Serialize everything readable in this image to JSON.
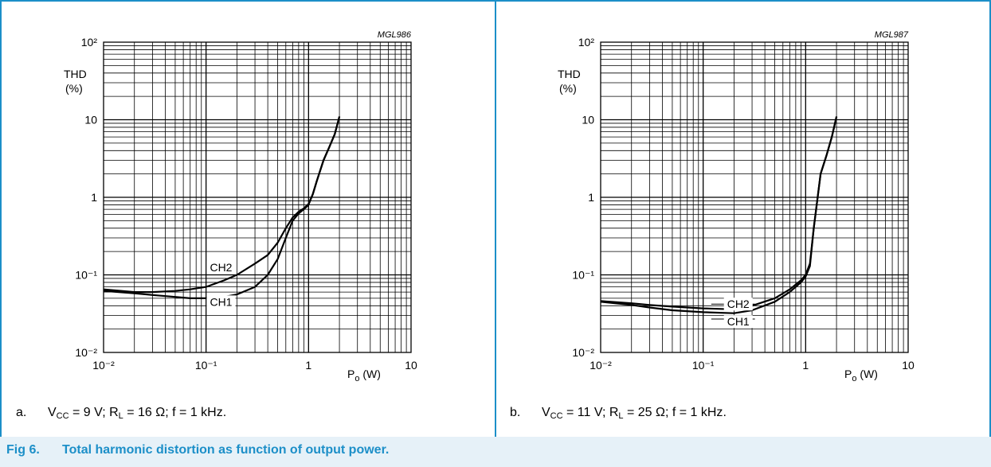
{
  "colors": {
    "frame": "#1c8fc8",
    "caption_bg": "#e6f1f8",
    "caption_text": "#1c8fc8",
    "curve": "#000000"
  },
  "figure_caption": {
    "number": "Fig 6.",
    "text": "Total harmonic distortion as function of output power."
  },
  "chart_data": [
    {
      "type": "line",
      "figure_id": "MGL986",
      "ylabel": "THD (%)",
      "xlabel": "P_o (W)",
      "x_scale": "log",
      "y_scale": "log",
      "xlim": [
        0.01,
        10
      ],
      "ylim": [
        0.01,
        100
      ],
      "x_ticks": [
        0.01,
        0.1,
        1,
        10
      ],
      "y_ticks": [
        0.01,
        0.1,
        1,
        10,
        100
      ],
      "grid": true,
      "series": [
        {
          "name": "CH2",
          "x": [
            0.01,
            0.02,
            0.03,
            0.05,
            0.07,
            0.1,
            0.15,
            0.2,
            0.3,
            0.4,
            0.5,
            0.6,
            0.7,
            0.8,
            0.9,
            1.0,
            1.1,
            1.2,
            1.4,
            1.6,
            1.8,
            2.0
          ],
          "y": [
            0.065,
            0.06,
            0.06,
            0.062,
            0.065,
            0.07,
            0.085,
            0.1,
            0.14,
            0.18,
            0.26,
            0.4,
            0.55,
            0.65,
            0.72,
            0.82,
            1.1,
            1.6,
            3.0,
            4.5,
            6.5,
            11
          ]
        },
        {
          "name": "CH1",
          "x": [
            0.01,
            0.02,
            0.03,
            0.05,
            0.07,
            0.1,
            0.15,
            0.2,
            0.3,
            0.4,
            0.5,
            0.6,
            0.7,
            0.8,
            0.9,
            1.0,
            1.1,
            1.2,
            1.4,
            1.6,
            1.8,
            2.0
          ],
          "y": [
            0.062,
            0.058,
            0.055,
            0.052,
            0.05,
            0.05,
            0.052,
            0.056,
            0.07,
            0.1,
            0.16,
            0.3,
            0.5,
            0.62,
            0.7,
            0.8,
            1.1,
            1.6,
            3.0,
            4.5,
            6.5,
            11
          ]
        }
      ],
      "annotations": [
        "CH2",
        "CH1"
      ],
      "condition": {
        "prefix": "a.",
        "vcc": "9 V",
        "rl": "16 Ω",
        "f": "1 kHz"
      }
    },
    {
      "type": "line",
      "figure_id": "MGL987",
      "ylabel": "THD (%)",
      "xlabel": "P_o (W)",
      "x_scale": "log",
      "y_scale": "log",
      "xlim": [
        0.01,
        10
      ],
      "ylim": [
        0.01,
        100
      ],
      "x_ticks": [
        0.01,
        0.1,
        1,
        10
      ],
      "y_ticks": [
        0.01,
        0.1,
        1,
        10,
        100
      ],
      "grid": true,
      "series": [
        {
          "name": "CH2",
          "x": [
            0.01,
            0.02,
            0.03,
            0.05,
            0.1,
            0.2,
            0.3,
            0.5,
            0.7,
            0.9,
            1.0,
            1.1,
            1.2,
            1.4,
            1.6,
            1.8,
            2.0
          ],
          "y": [
            0.046,
            0.043,
            0.041,
            0.039,
            0.037,
            0.036,
            0.04,
            0.05,
            0.065,
            0.085,
            0.1,
            0.14,
            0.4,
            2.0,
            3.5,
            6.0,
            11
          ]
        },
        {
          "name": "CH1",
          "x": [
            0.01,
            0.02,
            0.03,
            0.05,
            0.1,
            0.2,
            0.3,
            0.5,
            0.7,
            0.9,
            1.0,
            1.1,
            1.2,
            1.4,
            1.6,
            1.8,
            2.0
          ],
          "y": [
            0.045,
            0.041,
            0.038,
            0.035,
            0.033,
            0.032,
            0.035,
            0.045,
            0.06,
            0.08,
            0.095,
            0.13,
            0.4,
            2.0,
            3.5,
            6.0,
            11
          ]
        }
      ],
      "annotations": [
        "CH2",
        "CH1"
      ],
      "condition": {
        "prefix": "b.",
        "vcc": "11 V",
        "rl": "25 Ω",
        "f": "1 kHz"
      }
    }
  ]
}
